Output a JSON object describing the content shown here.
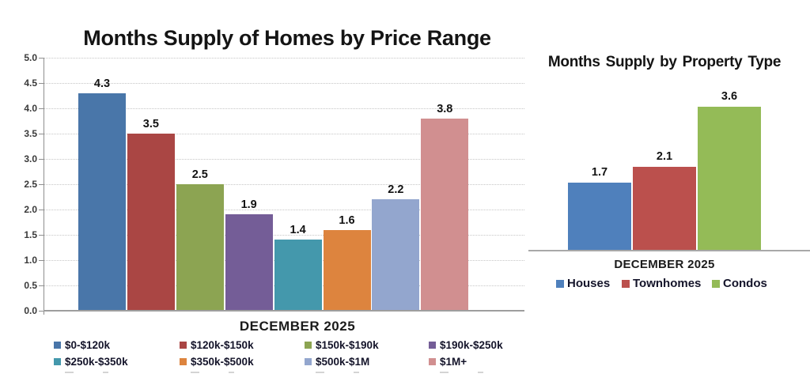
{
  "page": {
    "background": "#ffffff"
  },
  "chart_data": [
    {
      "type": "bar",
      "title": "Months Supply of Homes by Price Range",
      "xlabel": "DECEMBER 2025",
      "ylabel": "",
      "ylim": [
        0.0,
        5.0
      ],
      "ytick_step": 0.5,
      "ytick_labels": [
        "5.0",
        "4.5",
        "4.0",
        "3.5",
        "3.0",
        "2.5",
        "2.0",
        "1.5",
        "1.0",
        "0.5",
        "0.0"
      ],
      "grid": "horizontal-dotted",
      "legend_position": "bottom-2-rows-4-cols",
      "legend_marker": "square",
      "series": [
        {
          "name": "$0-$120k",
          "value": 4.3,
          "color": "#4976A9"
        },
        {
          "name": "$120k-$150k",
          "value": 3.5,
          "color": "#AA4644"
        },
        {
          "name": "$150k-$190k",
          "value": 2.5,
          "color": "#8CA452"
        },
        {
          "name": "$190k-$250k",
          "value": 1.9,
          "color": "#745D97"
        },
        {
          "name": "$250k-$350k",
          "value": 1.4,
          "color": "#4498AC"
        },
        {
          "name": "$350k-$500k",
          "value": 1.6,
          "color": "#DD843E"
        },
        {
          "name": "$500k-$1M",
          "value": 2.2,
          "color": "#93A6CE"
        },
        {
          "name": "$1M+",
          "value": 3.8,
          "color": "#D18F90"
        }
      ]
    },
    {
      "type": "bar",
      "title": "Months Supply by Property Type",
      "xlabel": "DECEMBER 2025",
      "ylabel": "",
      "yaxis_visible": false,
      "grid": "off",
      "legend_position": "bottom-inline",
      "legend_marker": "square",
      "series": [
        {
          "name": "Houses",
          "value": 1.7,
          "color": "#4F80BC"
        },
        {
          "name": "Townhomes",
          "value": 2.1,
          "color": "#BB504D"
        },
        {
          "name": "Condos",
          "value": 3.6,
          "color": "#94BB57"
        }
      ]
    }
  ]
}
